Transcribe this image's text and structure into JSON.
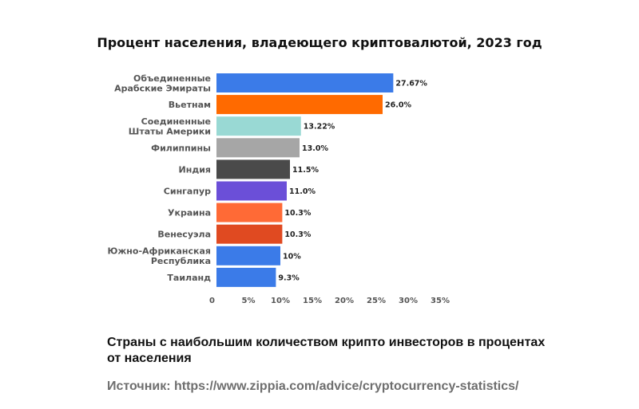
{
  "chart_data": {
    "type": "bar",
    "orientation": "horizontal",
    "title": "Процент населения, владеющего криптовалютой, 2023 год",
    "categories": [
      [
        "Объединенные",
        "Арабские Эмираты"
      ],
      [
        "Вьетнам"
      ],
      [
        "Соединенные",
        "Штаты Америки"
      ],
      [
        "Филиппины"
      ],
      [
        "Индия"
      ],
      [
        "Сингапур"
      ],
      [
        "Украина"
      ],
      [
        "Венесуэла"
      ],
      [
        "Южно-Африканская",
        "Республика"
      ],
      [
        "Таиланд"
      ]
    ],
    "values": [
      27.67,
      26.0,
      13.22,
      13.0,
      11.5,
      11.0,
      10.3,
      10.3,
      10,
      9.3
    ],
    "value_labels": [
      "27.67%",
      "26.0%",
      "13.22%",
      "13.0%",
      "11.5%",
      "11.0%",
      "10.3%",
      "10.3%",
      "10%",
      "9.3%"
    ],
    "colors": [
      "#3b7be8",
      "#ff6a00",
      "#99d9d4",
      "#a6a6a6",
      "#4a4a4a",
      "#6b4fd8",
      "#ff6a36",
      "#e04a21",
      "#3b7be8",
      "#3b7be8"
    ],
    "xlim": [
      0,
      35
    ],
    "xticks": [
      0,
      5,
      10,
      15,
      20,
      25,
      30,
      35
    ],
    "xtick_labels": [
      "0",
      "5%",
      "10%",
      "15%",
      "20%",
      "25%",
      "30%",
      "35%"
    ],
    "grid": false,
    "legend": "none"
  },
  "caption": "Страны с наибольшим количеством крипто инвесторов в процентах от населения",
  "source": "Источник: https://www.zippia.com/advice/cryptocurrency-statistics/"
}
